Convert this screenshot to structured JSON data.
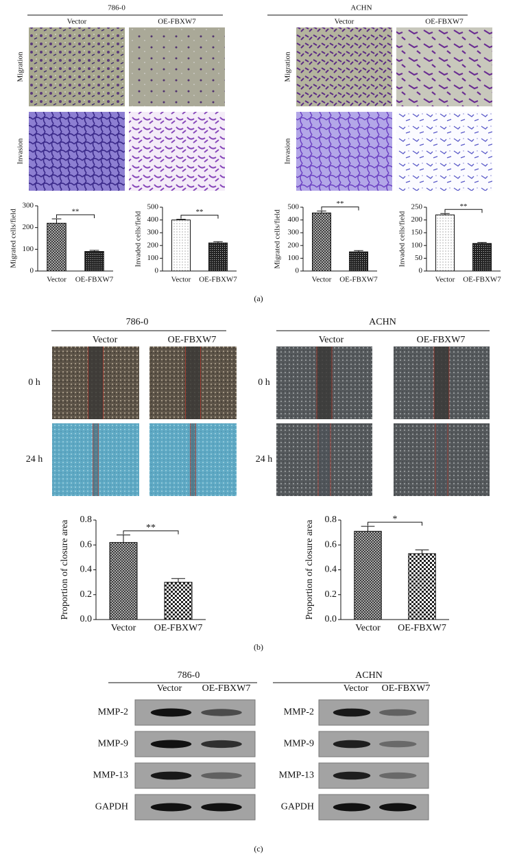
{
  "panel_a": {
    "label": "(a)",
    "groups": [
      {
        "title": "786-0",
        "columns": [
          "Vector",
          "OE-FBXW7"
        ],
        "rows": [
          "Migration",
          "Invasion"
        ]
      },
      {
        "title": "ACHN",
        "columns": [
          "Vector",
          "OE-FBXW7"
        ],
        "rows": [
          "Migration",
          "Invasion"
        ]
      }
    ]
  },
  "panel_b": {
    "label": "(b)",
    "groups": [
      {
        "title": "786-0",
        "columns": [
          "Vector",
          "OE-FBXW7"
        ],
        "rows": [
          "0 h",
          "24 h"
        ]
      },
      {
        "title": "ACHN",
        "columns": [
          "Vector",
          "OE-FBXW7"
        ],
        "rows": [
          "0 h",
          "24 h"
        ]
      }
    ]
  },
  "panel_c": {
    "label": "(c)",
    "groups": [
      {
        "title": "786-0",
        "columns": [
          "Vector",
          "OE-FBXW7"
        ],
        "rows": [
          "MMP-2",
          "MMP-9",
          "MMP-13",
          "GAPDH"
        ]
      },
      {
        "title": "ACHN",
        "columns": [
          "Vector",
          "OE-FBXW7"
        ],
        "rows": [
          "MMP-2",
          "MMP-9",
          "MMP-13",
          "GAPDH"
        ]
      }
    ]
  },
  "chart_data": [
    {
      "type": "bar",
      "ylabel": "Migrated cells/field",
      "categories": [
        "Vector",
        "OE-FBXW7"
      ],
      "values": [
        220,
        90
      ],
      "errors": [
        20,
        5
      ],
      "ylim": [
        0,
        300
      ],
      "yticks": [
        0,
        100,
        200,
        300
      ],
      "annotation": "**"
    },
    {
      "type": "bar",
      "ylabel": "Invaded cells/field",
      "categories": [
        "Vector",
        "OE-FBXW7"
      ],
      "values": [
        400,
        220
      ],
      "errors": [
        5,
        10
      ],
      "ylim": [
        0,
        500
      ],
      "yticks": [
        0,
        100,
        200,
        300,
        400,
        500
      ],
      "annotation": "**"
    },
    {
      "type": "bar",
      "ylabel": "Migrated cells/field",
      "categories": [
        "Vector",
        "OE-FBXW7"
      ],
      "values": [
        455,
        150
      ],
      "errors": [
        15,
        10
      ],
      "ylim": [
        0,
        500
      ],
      "yticks": [
        0,
        100,
        200,
        300,
        400,
        500
      ],
      "annotation": "**"
    },
    {
      "type": "bar",
      "ylabel": "Invaded cells/field",
      "categories": [
        "Vector",
        "OE-FBXW7"
      ],
      "values": [
        220,
        108
      ],
      "errors": [
        5,
        4
      ],
      "ylim": [
        0,
        250
      ],
      "yticks": [
        0,
        50,
        100,
        150,
        200,
        250
      ],
      "annotation": "**"
    },
    {
      "type": "bar",
      "ylabel": "Proportion of closure area",
      "categories": [
        "Vector",
        "OE-FBXW7"
      ],
      "values": [
        0.62,
        0.3
      ],
      "errors": [
        0.06,
        0.03
      ],
      "ylim": [
        0,
        0.8
      ],
      "yticks": [
        {
          "value": 0,
          "label": "0.0"
        },
        0.2,
        0.4,
        0.6,
        0.8
      ],
      "annotation": "**"
    },
    {
      "type": "bar",
      "ylabel": "Proportion of closure area",
      "categories": [
        "Vector",
        "OE-FBXW7"
      ],
      "values": [
        0.71,
        0.53
      ],
      "errors": [
        0.04,
        0.03
      ],
      "ylim": [
        0,
        0.8
      ],
      "yticks": [
        {
          "value": 0,
          "label": "0.0"
        },
        0.2,
        0.4,
        0.6,
        0.8
      ],
      "annotation": "*"
    }
  ]
}
